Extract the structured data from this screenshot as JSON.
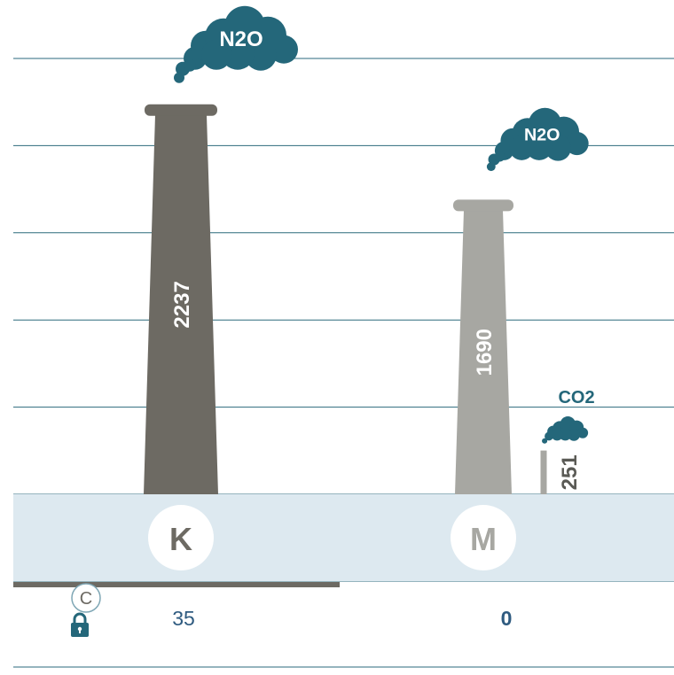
{
  "colors": {
    "grid": "#2b6a7c",
    "band": "#dde9f0",
    "stack_dark": "#6d6a63",
    "stack_light": "#a7a7a2",
    "cloud": "#24677a",
    "underline": "#6d6a63",
    "value_text": "#2f5b80"
  },
  "chart_data": {
    "type": "bar",
    "categories": [
      "K",
      "M"
    ],
    "series": [
      {
        "name": "N2O",
        "values": [
          2237,
          1690
        ]
      },
      {
        "name": "CO2",
        "values": [
          0,
          251
        ]
      }
    ],
    "bar_labels": {
      "N2O": [
        "2237",
        "1690"
      ],
      "CO2": [
        "",
        "251"
      ]
    },
    "cloud_labels": {
      "N2O": [
        "N2O",
        "N2O"
      ],
      "CO2": [
        "",
        "CO2"
      ]
    },
    "ylim": [
      0,
      2500
    ],
    "grid": true,
    "legend": "none",
    "bottom_values": [
      "35",
      "0"
    ]
  },
  "badge": {
    "letter": "C",
    "icon": "lock-icon"
  }
}
